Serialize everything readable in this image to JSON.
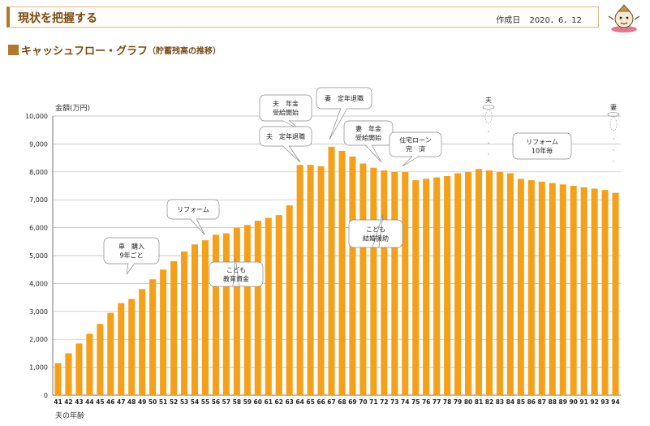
{
  "header": {
    "title": "現状を把握する",
    "created_label": "作成日",
    "created_date": "2020．6．12"
  },
  "section": {
    "title": "キャッシュフロー・グラフ",
    "subtitle": "（貯蓄残高の推移）"
  },
  "colors": {
    "bar": "#F5A01A",
    "grid": "#b8b8b8",
    "accent": "#b0772e"
  },
  "chart_data": {
    "type": "bar",
    "ylabel": "金額(万円)",
    "xlabel": "夫の年齢",
    "ylim": [
      0,
      10000
    ],
    "yticks": [
      "0",
      "1,000",
      "2,000",
      "3,000",
      "4,000",
      "5,000",
      "6,000",
      "7,000",
      "8,000",
      "9,000",
      "10,000"
    ],
    "grid": true,
    "categories": [
      "41",
      "42",
      "43",
      "44",
      "45",
      "46",
      "47",
      "48",
      "49",
      "50",
      "51",
      "52",
      "53",
      "54",
      "55",
      "56",
      "57",
      "58",
      "59",
      "60",
      "61",
      "62",
      "63",
      "64",
      "65",
      "66",
      "67",
      "68",
      "69",
      "70",
      "71",
      "72",
      "73",
      "74",
      "75",
      "76",
      "77",
      "78",
      "79",
      "80",
      "81",
      "82",
      "83",
      "84",
      "85",
      "86",
      "87",
      "88",
      "89",
      "90",
      "91",
      "92",
      "93",
      "94"
    ],
    "values": [
      1150,
      1500,
      1850,
      2200,
      2550,
      2950,
      3300,
      3450,
      3800,
      4150,
      4500,
      4800,
      5150,
      5400,
      5550,
      5750,
      5800,
      6000,
      6100,
      6250,
      6350,
      6450,
      6800,
      8250,
      8250,
      8200,
      8900,
      8750,
      8550,
      8300,
      8150,
      8050,
      8000,
      8000,
      7700,
      7750,
      7800,
      7850,
      7950,
      8000,
      8100,
      8050,
      8000,
      7950,
      7750,
      7700,
      7650,
      7600,
      7550,
      7500,
      7450,
      7400,
      7350,
      7250
    ],
    "annotations": [
      {
        "lines": [
          "車　購入",
          "9年ごと"
        ],
        "at": "49"
      },
      {
        "lines": [
          "リフォーム"
        ],
        "at": "55"
      },
      {
        "lines": [
          "こども",
          "教育資金"
        ],
        "at": "58"
      },
      {
        "lines": [
          "夫　年金",
          "受給開始"
        ],
        "at": "65"
      },
      {
        "lines": [
          "夫　定年退職"
        ],
        "at": "64"
      },
      {
        "lines": [
          "妻　定年退職"
        ],
        "at": "67"
      },
      {
        "lines": [
          "妻　年金",
          "受給開始"
        ],
        "at": "71"
      },
      {
        "lines": [
          "住宅ローン",
          "完　済"
        ],
        "at": "74"
      },
      {
        "lines": [
          "こども",
          "結婚援助"
        ],
        "at": "73"
      },
      {
        "lines": [
          "リフォーム",
          "10年毎"
        ],
        "at": "86"
      },
      {
        "lines": [
          "夫"
        ],
        "at": "82"
      },
      {
        "lines": [
          "妻"
        ],
        "at": "94"
      }
    ]
  }
}
